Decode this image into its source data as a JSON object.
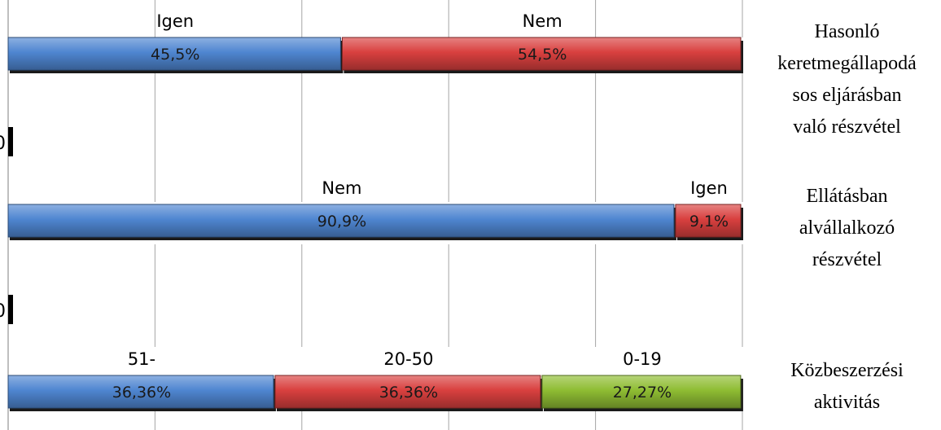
{
  "chart_data": {
    "type": "bar",
    "stacked": true,
    "orientation": "horizontal",
    "xlim": [
      0,
      100
    ],
    "grid": true,
    "legend": "none",
    "rows": [
      {
        "category": "Hasonló keretmegállapodásos eljárásban való részvétel",
        "category_lines": [
          "Hasonló",
          "keretmegállapodá",
          "sos eljárásban",
          "való részvétel"
        ],
        "segments": [
          {
            "name": "Igen",
            "value": 45.5,
            "label": "45,5%",
            "color": "#4f86d1"
          },
          {
            "name": "Nem",
            "value": 54.5,
            "label": "54,5%",
            "color": "#d9403f"
          }
        ]
      },
      {
        "category": "Ellátásban alvállalkozó részvétel",
        "category_lines": [
          "Ellátásban",
          "alvállalkozó",
          "részvétel"
        ],
        "segments": [
          {
            "name": "Nem",
            "value": 90.9,
            "label": "90,9%",
            "color": "#4f86d1"
          },
          {
            "name": "Igen",
            "value": 9.1,
            "label": "9,1%",
            "color": "#d9403f"
          }
        ]
      },
      {
        "category": "Közbeszerzési aktivitás",
        "category_lines": [
          "Közbeszerzési",
          "aktivitás"
        ],
        "segments": [
          {
            "name": "51-",
            "value": 36.36,
            "label": "36,36%",
            "color": "#4f86d1"
          },
          {
            "name": "20-50",
            "value": 36.36,
            "label": "36,36%",
            "color": "#d9403f"
          },
          {
            "name": "0-19",
            "value": 27.27,
            "label": "27,27%",
            "color": "#8fbd33"
          }
        ]
      }
    ],
    "tick_fragments": [
      "0",
      "0"
    ]
  }
}
